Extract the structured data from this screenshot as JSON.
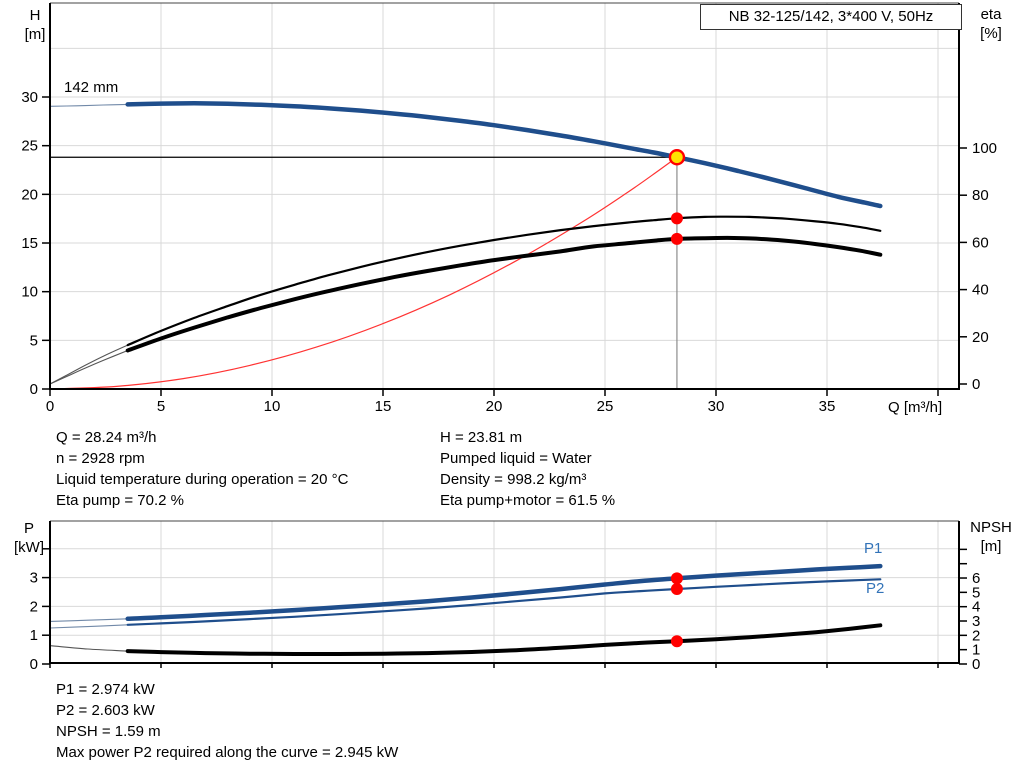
{
  "title_box": {
    "text": "NB 32-125/142, 3*400 V, 50Hz"
  },
  "colors": {
    "curve_blue": "#1f4e8c",
    "thin_blue": "#7189a8",
    "curve_black": "#000000",
    "thin_black": "#555555",
    "system_red": "#ff3333",
    "dot_red": "#ff0000",
    "op_yellow": "#ffe100",
    "series_label_blue": "#3273b8",
    "grid": "#d9d9d9",
    "axis": "#000000",
    "op_line_gray": "#8c8c8c"
  },
  "info_top_left": {
    "lines": [
      "Q = 28.24 m³/h",
      "n = 2928 rpm",
      "Liquid temperature during operation = 20 °C",
      "Eta pump = 70.2 %"
    ]
  },
  "info_top_right": {
    "lines": [
      "H = 23.81 m",
      "Pumped liquid = Water",
      "Density = 998.2 kg/m³",
      "Eta pump+motor = 61.5 %"
    ]
  },
  "info_bottom": {
    "lines": [
      "P1 = 2.974 kW",
      "P2 = 2.603 kW",
      "NPSH = 1.59 m",
      "Max power P2 required along the curve = 2.945 kW"
    ]
  },
  "chart_data": [
    {
      "type": "line",
      "title": "NB 32-125/142, 3*400 V, 50Hz",
      "impeller_label": "142 mm",
      "x_axis": {
        "label": "Q [m³/h]",
        "ticks": [
          0,
          5,
          10,
          15,
          20,
          25,
          30,
          35
        ],
        "unlabeled_ticks": [
          40
        ],
        "range": [
          0,
          41
        ],
        "grid": [
          5,
          10,
          15,
          20,
          25,
          30,
          35,
          40
        ]
      },
      "y_left": {
        "label": "H [m]",
        "label_lines": [
          "H",
          "[m]"
        ],
        "ticks": [
          0,
          5,
          10,
          15,
          20,
          25,
          30
        ],
        "range": [
          0,
          39.7
        ],
        "grid": [
          5,
          10,
          15,
          20,
          25,
          30,
          35
        ]
      },
      "y_right": {
        "label": "eta [%]",
        "label_lines": [
          "eta",
          "[%]"
        ],
        "ticks": [
          0,
          20,
          40,
          60,
          80,
          100
        ],
        "range": [
          0,
          161
        ]
      },
      "operating_point": {
        "q": 28.24,
        "h": 23.81,
        "eta_pump": 70.2,
        "eta_pump_motor": 61.5
      },
      "series": [
        {
          "name": "system-curve",
          "axis": "left",
          "color": "#ff3333",
          "width": 1.2,
          "points": [
            [
              0,
              0
            ],
            [
              3,
              0.27
            ],
            [
              6,
              1.07
            ],
            [
              9,
              2.42
            ],
            [
              12,
              4.3
            ],
            [
              15,
              6.72
            ],
            [
              18,
              9.67
            ],
            [
              21,
              13.17
            ],
            [
              24,
              17.2
            ],
            [
              26,
              20.18
            ],
            [
              27.2,
              22.09
            ],
            [
              28.24,
              23.81
            ]
          ]
        },
        {
          "name": "eta-pump",
          "axis": "right",
          "color": "#000000",
          "thin_color": "#555555",
          "width": 2.2,
          "thin_until": 3.5,
          "points": [
            [
              0,
              0
            ],
            [
              0.8,
              4
            ],
            [
              1.6,
              8
            ],
            [
              2.4,
              11.8
            ],
            [
              3.5,
              16.5
            ],
            [
              5,
              22.5
            ],
            [
              6.5,
              28
            ],
            [
              8,
              33
            ],
            [
              9.5,
              37.8
            ],
            [
              11,
              42
            ],
            [
              12.5,
              46
            ],
            [
              14,
              49.6
            ],
            [
              15.5,
              52.9
            ],
            [
              17,
              55.9
            ],
            [
              18.5,
              58.6
            ],
            [
              20,
              61
            ],
            [
              21.5,
              63.2
            ],
            [
              23,
              65.2
            ],
            [
              24.5,
              66.9
            ],
            [
              26,
              68.4
            ],
            [
              27.2,
              69.4
            ],
            [
              28.24,
              70.2
            ],
            [
              29.5,
              70.8
            ],
            [
              30.5,
              70.9
            ],
            [
              31.5,
              70.8
            ],
            [
              32.5,
              70.4
            ],
            [
              33.5,
              69.8
            ],
            [
              34.5,
              68.9
            ],
            [
              35.5,
              67.9
            ],
            [
              36.5,
              66.5
            ],
            [
              37.4,
              64.9
            ]
          ]
        },
        {
          "name": "eta-pump-motor",
          "axis": "right",
          "color": "#000000",
          "thin_color": "#555555",
          "width": 4,
          "thin_until": 3.5,
          "points": [
            [
              0,
              0
            ],
            [
              0.8,
              3.4
            ],
            [
              1.6,
              6.8
            ],
            [
              2.4,
              10
            ],
            [
              3.5,
              14.2
            ],
            [
              5,
              19.3
            ],
            [
              6.5,
              23.9
            ],
            [
              8,
              28.2
            ],
            [
              9.5,
              32.2
            ],
            [
              11,
              35.9
            ],
            [
              12.5,
              39.3
            ],
            [
              14,
              42.4
            ],
            [
              15.5,
              45.3
            ],
            [
              17,
              47.9
            ],
            [
              18.5,
              50.3
            ],
            [
              20,
              52.5
            ],
            [
              21.5,
              54.4
            ],
            [
              23,
              56.2
            ],
            [
              24.5,
              58.3
            ],
            [
              26,
              59.6
            ],
            [
              27.2,
              60.7
            ],
            [
              28.24,
              61.5
            ],
            [
              29.5,
              61.8
            ],
            [
              30.5,
              61.9
            ],
            [
              31.5,
              61.7
            ],
            [
              32.5,
              61.2
            ],
            [
              33.5,
              60.4
            ],
            [
              34.5,
              59.3
            ],
            [
              35.5,
              58
            ],
            [
              36.5,
              56.5
            ],
            [
              37.4,
              54.8
            ]
          ]
        },
        {
          "name": "head-142mm",
          "axis": "left",
          "color": "#1f4e8c",
          "thin_color": "#7189a8",
          "width": 4.5,
          "thin_until": 3.5,
          "points": [
            [
              0,
              29.05
            ],
            [
              1.2,
              29.1
            ],
            [
              2.4,
              29.18
            ],
            [
              3.5,
              29.24
            ],
            [
              5,
              29.32
            ],
            [
              6.5,
              29.35
            ],
            [
              8,
              29.3
            ],
            [
              9.5,
              29.2
            ],
            [
              11,
              29.05
            ],
            [
              12.5,
              28.85
            ],
            [
              14,
              28.6
            ],
            [
              15.5,
              28.3
            ],
            [
              17,
              27.95
            ],
            [
              18.5,
              27.55
            ],
            [
              20,
              27.1
            ],
            [
              21.5,
              26.6
            ],
            [
              23,
              26.05
            ],
            [
              24.5,
              25.45
            ],
            [
              26,
              24.8
            ],
            [
              27.2,
              24.3
            ],
            [
              28.24,
              23.81
            ],
            [
              29.5,
              23.2
            ],
            [
              31,
              22.4
            ],
            [
              32.5,
              21.55
            ],
            [
              34,
              20.65
            ],
            [
              35.5,
              19.75
            ],
            [
              36.7,
              19.15
            ],
            [
              37.4,
              18.8
            ]
          ]
        }
      ]
    },
    {
      "type": "line",
      "x_axis": {
        "label": "",
        "ticks": [],
        "unlabeled_ticks": [
          0,
          5,
          10,
          15,
          20,
          25,
          30,
          35,
          40
        ],
        "range": [
          0,
          41
        ],
        "grid": [
          5,
          10,
          15,
          20,
          25,
          30,
          35,
          40
        ]
      },
      "y_left": {
        "label": "P [kW]",
        "label_lines": [
          "P",
          "[kW]"
        ],
        "ticks": [
          0,
          1,
          2,
          3
        ],
        "unlabeled_ticks": [
          4
        ],
        "range": [
          0,
          5
        ],
        "grid": [
          1,
          2,
          3,
          4
        ]
      },
      "y_right": {
        "label": "NPSH [m]",
        "label_lines": [
          "NPSH",
          "[m]"
        ],
        "ticks": [
          0,
          1,
          2,
          3,
          4,
          5,
          6
        ],
        "unlabeled_ticks": [
          7,
          8
        ],
        "range": [
          0,
          10
        ]
      },
      "operating_point": {
        "q": 28.24,
        "p1": 2.974,
        "p2": 2.603,
        "npsh": 1.59
      },
      "series": [
        {
          "name": "power-p1",
          "label": "P1",
          "axis": "left",
          "color": "#1f4e8c",
          "thin_color": "#7189a8",
          "width": 4.5,
          "thin_until": 3.5,
          "points": [
            [
              0,
              1.48
            ],
            [
              1.7,
              1.52
            ],
            [
              3.5,
              1.57
            ],
            [
              5,
              1.62
            ],
            [
              7,
              1.7
            ],
            [
              9,
              1.78
            ],
            [
              11,
              1.87
            ],
            [
              13,
              1.97
            ],
            [
              15,
              2.07
            ],
            [
              17,
              2.18
            ],
            [
              19,
              2.31
            ],
            [
              21,
              2.45
            ],
            [
              23,
              2.6
            ],
            [
              25,
              2.76
            ],
            [
              26.6,
              2.88
            ],
            [
              28.24,
              2.974
            ],
            [
              30,
              3.07
            ],
            [
              31.5,
              3.14
            ],
            [
              33,
              3.21
            ],
            [
              34.5,
              3.28
            ],
            [
              36,
              3.34
            ],
            [
              37.4,
              3.4
            ]
          ]
        },
        {
          "name": "power-p2",
          "label": "P2",
          "axis": "left",
          "color": "#1f4e8c",
          "thin_color": "#7189a8",
          "width": 2.2,
          "thin_until": 3.5,
          "points": [
            [
              0,
              1.25
            ],
            [
              1.7,
              1.3
            ],
            [
              3.5,
              1.36
            ],
            [
              5,
              1.41
            ],
            [
              7,
              1.48
            ],
            [
              9,
              1.56
            ],
            [
              11,
              1.64
            ],
            [
              13,
              1.73
            ],
            [
              15,
              1.83
            ],
            [
              17,
              1.93
            ],
            [
              19,
              2.05
            ],
            [
              21,
              2.18
            ],
            [
              23,
              2.31
            ],
            [
              25,
              2.45
            ],
            [
              26.6,
              2.53
            ],
            [
              28.24,
              2.603
            ],
            [
              30,
              2.68
            ],
            [
              31.5,
              2.74
            ],
            [
              33,
              2.8
            ],
            [
              34.5,
              2.85
            ],
            [
              36,
              2.9
            ],
            [
              37.4,
              2.94
            ]
          ]
        },
        {
          "name": "npsh",
          "label": "",
          "axis": "right",
          "color": "#000000",
          "thin_color": "#555555",
          "width": 4,
          "thin_until": 3.5,
          "points": [
            [
              0,
              1.28
            ],
            [
              1.7,
              1.05
            ],
            [
              3.5,
              0.9
            ],
            [
              5,
              0.83
            ],
            [
              7,
              0.76
            ],
            [
              9,
              0.72
            ],
            [
              11,
              0.7
            ],
            [
              13,
              0.7
            ],
            [
              15,
              0.72
            ],
            [
              17,
              0.76
            ],
            [
              19,
              0.84
            ],
            [
              21,
              0.96
            ],
            [
              23,
              1.13
            ],
            [
              25,
              1.33
            ],
            [
              26.6,
              1.47
            ],
            [
              28.24,
              1.59
            ],
            [
              30,
              1.73
            ],
            [
              31.5,
              1.87
            ],
            [
              33,
              2.03
            ],
            [
              34.5,
              2.22
            ],
            [
              36,
              2.45
            ],
            [
              37.4,
              2.7
            ]
          ]
        }
      ]
    }
  ]
}
